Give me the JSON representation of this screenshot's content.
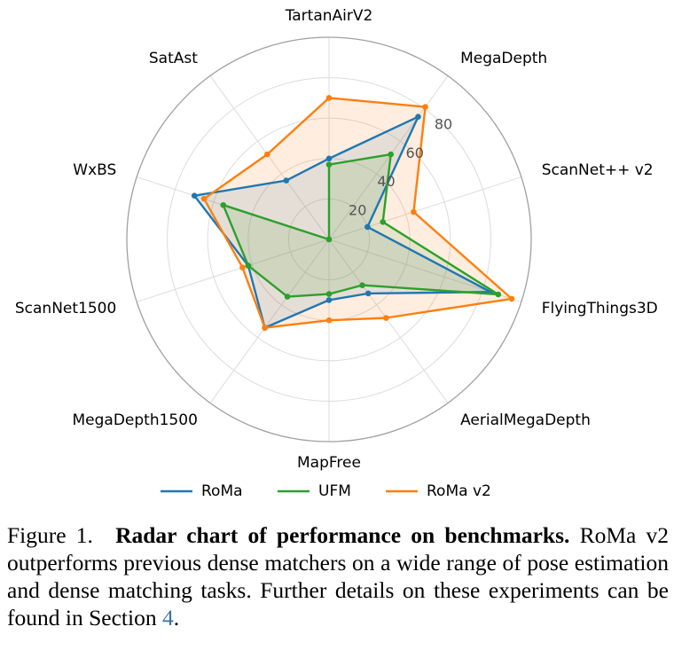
{
  "chart_data": {
    "type": "radar",
    "axes": [
      "TartanAirV2",
      "MegaDepth",
      "ScanNet++ v2",
      "FlyingThings3D",
      "AerialMegaDepth",
      "MapFree",
      "MegaDepth1500",
      "ScanNet1500",
      "WxBS",
      "SatAst"
    ],
    "rlim": [
      0,
      100
    ],
    "rticks": [
      20,
      40,
      60,
      80
    ],
    "grid": true,
    "legend_position": "bottom",
    "series": [
      {
        "name": "RoMa",
        "color": "#1f77b4",
        "values": [
          40,
          75,
          20,
          84,
          33,
          30,
          54,
          42,
          70,
          36
        ]
      },
      {
        "name": "UFM",
        "color": "#2ca02c",
        "values": [
          37,
          52,
          28,
          88,
          28,
          27,
          35,
          42,
          55,
          0
        ]
      },
      {
        "name": "RoMa v2",
        "color": "#ff7f0e",
        "values": [
          70,
          81,
          44,
          95,
          48,
          40,
          54,
          45,
          65,
          52
        ]
      }
    ]
  },
  "caption": {
    "label": "Figure 1.",
    "title": "Radar chart of performance on benchmarks.",
    "body": "RoMa v2 outperforms previous dense matchers on a wide range of pose estimation and dense matching tasks. Further details on these experiments can be found in Section",
    "ref": "4",
    "end": "."
  }
}
